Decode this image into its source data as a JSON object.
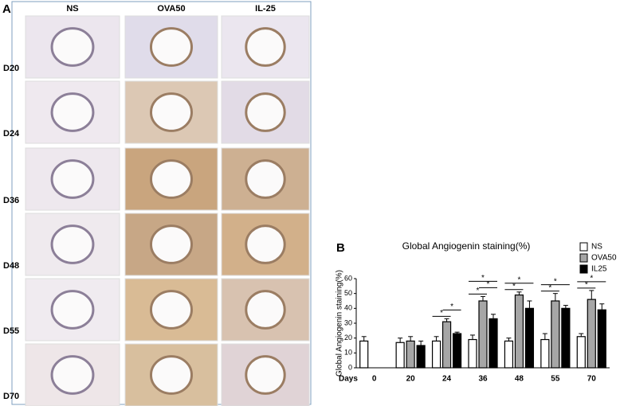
{
  "panel_a": {
    "label": "A",
    "columns": [
      "NS",
      "OVA50",
      "IL-25"
    ],
    "rows": [
      "D20",
      "D24",
      "D36",
      "D48",
      "D55",
      "D70"
    ]
  },
  "chart_data": {
    "type": "bar",
    "panel_label": "B",
    "title": "Global Angiogenin staining(%)",
    "y_label": "Global Angiogenin staining(%)",
    "x_label": "Days",
    "categories": [
      "0",
      "20",
      "24",
      "36",
      "48",
      "55",
      "70"
    ],
    "series": [
      {
        "name": "NS",
        "color": "#ffffff",
        "values": [
          18,
          17,
          18,
          19,
          18,
          19,
          21
        ],
        "errors": [
          3,
          3,
          3,
          3,
          2,
          4,
          2
        ]
      },
      {
        "name": "OVA50",
        "color": "#a6a6a6",
        "values": [
          null,
          18,
          31,
          45,
          49,
          45,
          46
        ],
        "errors": [
          null,
          3,
          2,
          3,
          2,
          5,
          6
        ]
      },
      {
        "name": "IL25",
        "color": "#000000",
        "values": [
          null,
          15,
          23,
          33,
          40,
          40,
          39
        ],
        "errors": [
          null,
          3,
          1,
          3,
          5,
          2,
          4
        ]
      }
    ],
    "annotations": [
      {
        "category": "24",
        "pair": [
          "NS",
          "OVA50"
        ],
        "label": "*"
      },
      {
        "category": "24",
        "pair": [
          "OVA50",
          "IL25"
        ],
        "label": "*"
      },
      {
        "category": "36",
        "pair": [
          "NS",
          "OVA50"
        ],
        "label": "*"
      },
      {
        "category": "36",
        "pair": [
          "OVA50",
          "IL25"
        ],
        "label": "*"
      },
      {
        "category": "36",
        "pair": [
          "NS",
          "IL25"
        ],
        "label": "*"
      },
      {
        "category": "48",
        "pair": [
          "NS",
          "OVA50"
        ],
        "label": "*"
      },
      {
        "category": "48",
        "pair": [
          "NS",
          "IL25"
        ],
        "label": "*"
      },
      {
        "category": "55",
        "pair": [
          "NS",
          "OVA50"
        ],
        "label": "*"
      },
      {
        "category": "55",
        "pair": [
          "NS",
          "IL25"
        ],
        "label": "*"
      },
      {
        "category": "70",
        "pair": [
          "NS",
          "OVA50"
        ],
        "label": "*"
      },
      {
        "category": "70",
        "pair": [
          "NS",
          "IL25"
        ],
        "label": "*"
      }
    ],
    "ylim": [
      0,
      60
    ],
    "yticks": [
      0,
      10,
      20,
      30,
      40,
      50,
      60
    ],
    "grid": false
  }
}
